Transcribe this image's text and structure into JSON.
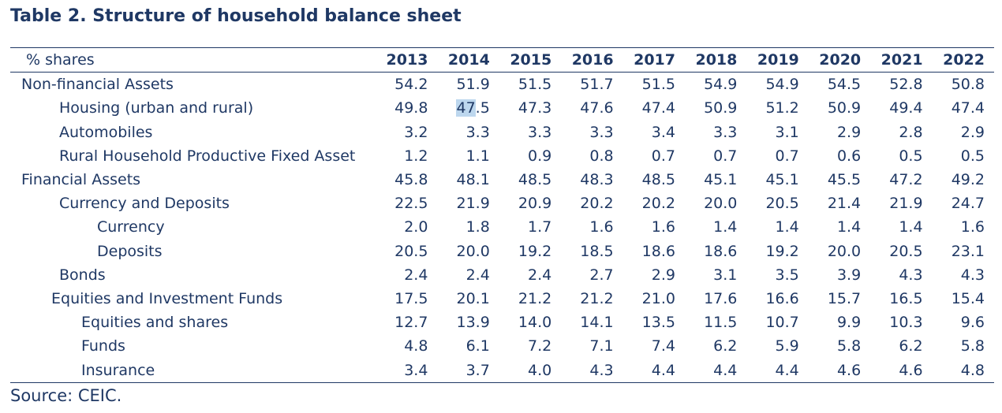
{
  "title": "Table 2. Structure of household balance sheet",
  "table": {
    "unit_label": "% shares",
    "years": [
      "2013",
      "2014",
      "2015",
      "2016",
      "2017",
      "2018",
      "2019",
      "2020",
      "2021",
      "2022"
    ],
    "rows": [
      {
        "label": "Non-financial Assets",
        "values": [
          "54.2",
          "51.9",
          "51.5",
          "51.7",
          "51.5",
          "54.9",
          "54.9",
          "54.5",
          "52.8",
          "50.8"
        ]
      },
      {
        "label": "Housing (urban and rural)",
        "values": [
          "49.8",
          "47.5",
          "47.3",
          "47.6",
          "47.4",
          "50.9",
          "51.2",
          "50.9",
          "49.4",
          "47.4"
        ]
      },
      {
        "label": "Automobiles",
        "values": [
          "3.2",
          "3.3",
          "3.3",
          "3.3",
          "3.4",
          "3.3",
          "3.1",
          "2.9",
          "2.8",
          "2.9"
        ]
      },
      {
        "label": "Rural Household Productive Fixed Asset",
        "values": [
          "1.2",
          "1.1",
          "0.9",
          "0.8",
          "0.7",
          "0.7",
          "0.7",
          "0.6",
          "0.5",
          "0.5"
        ]
      },
      {
        "label": "Financial Assets",
        "values": [
          "45.8",
          "48.1",
          "48.5",
          "48.3",
          "48.5",
          "45.1",
          "45.1",
          "45.5",
          "47.2",
          "49.2"
        ]
      },
      {
        "label": "Currency and Deposits",
        "values": [
          "22.5",
          "21.9",
          "20.9",
          "20.2",
          "20.2",
          "20.0",
          "20.5",
          "21.4",
          "21.9",
          "24.7"
        ]
      },
      {
        "label": "Currency",
        "values": [
          "2.0",
          "1.8",
          "1.7",
          "1.6",
          "1.6",
          "1.4",
          "1.4",
          "1.4",
          "1.4",
          "1.6"
        ]
      },
      {
        "label": "Deposits",
        "values": [
          "20.5",
          "20.0",
          "19.2",
          "18.5",
          "18.6",
          "18.6",
          "19.2",
          "20.0",
          "20.5",
          "23.1"
        ]
      },
      {
        "label": "Bonds",
        "values": [
          "2.4",
          "2.4",
          "2.4",
          "2.7",
          "2.9",
          "3.1",
          "3.5",
          "3.9",
          "4.3",
          "4.3"
        ]
      },
      {
        "label": "Equities and Investment Funds",
        "values": [
          "17.5",
          "20.1",
          "21.2",
          "21.2",
          "21.0",
          "17.6",
          "16.6",
          "15.7",
          "16.5",
          "15.4"
        ]
      },
      {
        "label": "Equities and shares",
        "values": [
          "12.7",
          "13.9",
          "14.0",
          "14.1",
          "13.5",
          "11.5",
          "10.7",
          "9.9",
          "10.3",
          "9.6"
        ]
      },
      {
        "label": "Funds",
        "values": [
          "4.8",
          "6.1",
          "7.2",
          "7.1",
          "7.4",
          "6.2",
          "5.9",
          "5.8",
          "6.2",
          "5.8"
        ]
      },
      {
        "label": "Insurance",
        "values": [
          "3.4",
          "3.7",
          "4.0",
          "4.3",
          "4.4",
          "4.4",
          "4.4",
          "4.6",
          "4.6",
          "4.8"
        ]
      }
    ],
    "selection": {
      "row": 1,
      "year": "2014",
      "selected_text": "47",
      "unselected_text": ".5",
      "highlight_color": "#bdd7ee"
    }
  },
  "source": "Source: CEIC.",
  "colors": {
    "text": "#1f3864",
    "rule": "#1f3864",
    "background": "#ffffff"
  }
}
